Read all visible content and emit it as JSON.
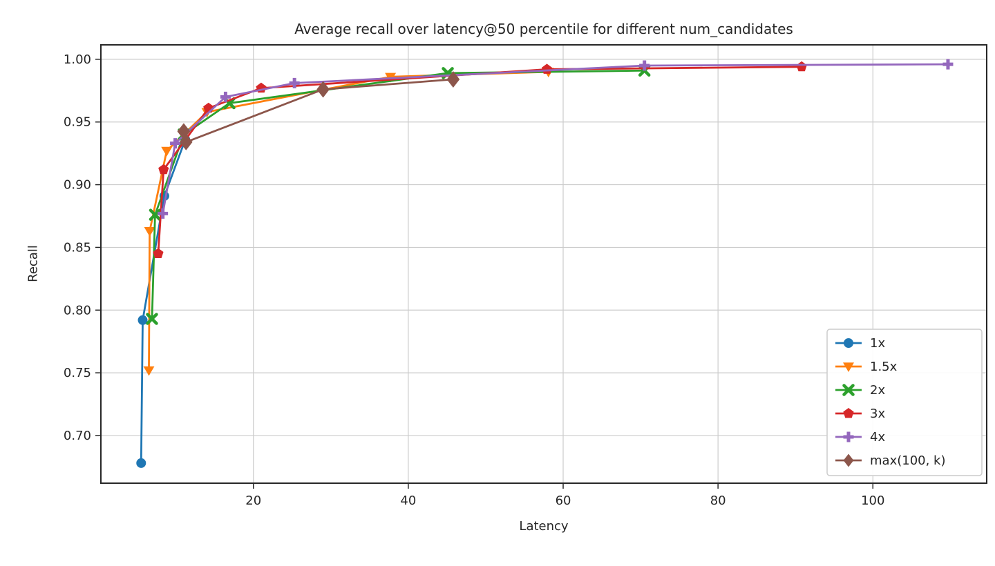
{
  "chart_data": {
    "type": "line",
    "title": "Average recall over latency@50 percentile for different num_candidates",
    "xlabel": "Latency",
    "ylabel": "Recall",
    "xlim": [
      0.3,
      114.7
    ],
    "ylim": [
      0.662,
      1.0115
    ],
    "x_ticks": [
      20,
      40,
      60,
      80,
      100
    ],
    "x_tick_labels": [
      "20",
      "40",
      "60",
      "80",
      "100"
    ],
    "y_ticks": [
      0.7,
      0.75,
      0.8,
      0.85,
      0.9,
      0.95,
      1.0
    ],
    "y_tick_labels": [
      "0.70",
      "0.75",
      "0.80",
      "0.85",
      "0.90",
      "0.95",
      "1.00"
    ],
    "grid": true,
    "legend_position": "lower right",
    "colors": {
      "grid": "#cccccc",
      "spine": "#262626",
      "text": "#262626",
      "legend_border": "#cccccc",
      "legend_background": "#ffffff"
    },
    "series": [
      {
        "name": "1x",
        "color": "#1f77b4",
        "marker": "circle",
        "marker_size": 7,
        "data": [
          [
            5.5,
            0.678
          ],
          [
            5.7,
            0.792
          ],
          [
            8.5,
            0.891
          ],
          [
            11.2,
            0.936
          ]
        ]
      },
      {
        "name": "1.5x",
        "color": "#ff7f0e",
        "marker": "triangle-down",
        "marker_size": 8,
        "data": [
          [
            6.5,
            0.752
          ],
          [
            6.6,
            0.863
          ],
          [
            8.8,
            0.927
          ],
          [
            14.0,
            0.958
          ],
          [
            37.7,
            0.986
          ],
          [
            58.1,
            0.99
          ]
        ]
      },
      {
        "name": "2x",
        "color": "#2ca02c",
        "marker": "x-thick",
        "marker_size": 6.5,
        "data": [
          [
            6.9,
            0.793
          ],
          [
            7.3,
            0.876
          ],
          [
            11.0,
            0.94
          ],
          [
            16.9,
            0.965
          ],
          [
            45.1,
            0.989
          ],
          [
            70.5,
            0.991
          ]
        ]
      },
      {
        "name": "3x",
        "color": "#d62728",
        "marker": "pentagon",
        "marker_size": 8,
        "data": [
          [
            7.7,
            0.845
          ],
          [
            8.4,
            0.912
          ],
          [
            14.2,
            0.961
          ],
          [
            21.0,
            0.977
          ],
          [
            57.9,
            0.992
          ],
          [
            90.8,
            0.994
          ]
        ]
      },
      {
        "name": "4x",
        "color": "#9467bd",
        "marker": "plus-thick",
        "marker_size": 7.5,
        "data": [
          [
            8.3,
            0.877
          ],
          [
            9.9,
            0.933
          ],
          [
            16.4,
            0.97
          ],
          [
            25.3,
            0.981
          ],
          [
            70.5,
            0.995
          ],
          [
            109.7,
            0.996
          ]
        ]
      },
      {
        "name": "max(100, k)",
        "color": "#8c564b",
        "marker": "diamond",
        "marker_size": 12,
        "data": [
          [
            11.0,
            0.9425
          ],
          [
            11.3,
            0.934
          ],
          [
            29.0,
            0.976
          ],
          [
            45.8,
            0.984
          ]
        ]
      }
    ]
  }
}
